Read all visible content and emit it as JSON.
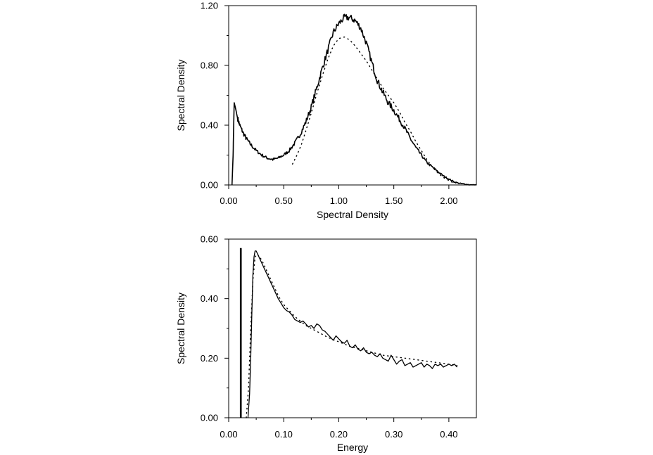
{
  "chart_data": [
    {
      "type": "line",
      "title": "",
      "xlabel": "Spectral Density",
      "ylabel": "Spectral Density",
      "xlim": [
        0,
        2.25
      ],
      "ylim": [
        0,
        1.2
      ],
      "x_ticks": [
        "0.00",
        "0.50",
        "1.00",
        "1.50",
        "2.00"
      ],
      "y_ticks": [
        "0.00",
        "0.40",
        "0.80",
        "1.20"
      ],
      "grid": false,
      "series": [
        {
          "style": "solid-noisy",
          "x": [
            0.03,
            0.04,
            0.05,
            0.06,
            0.08,
            0.1,
            0.13,
            0.16,
            0.2,
            0.25,
            0.3,
            0.35,
            0.4,
            0.45,
            0.5,
            0.55,
            0.6,
            0.65,
            0.7,
            0.75,
            0.8,
            0.85,
            0.9,
            0.95,
            1.0,
            1.05,
            1.1,
            1.15,
            1.2,
            1.25,
            1.3,
            1.35,
            1.4,
            1.45,
            1.5,
            1.55,
            1.6,
            1.65,
            1.7,
            1.75,
            1.8,
            1.85,
            1.9,
            1.95,
            2.0,
            2.05,
            2.1,
            2.15,
            2.2,
            2.25
          ],
          "y": [
            0.0,
            0.2,
            0.55,
            0.52,
            0.45,
            0.4,
            0.35,
            0.31,
            0.27,
            0.23,
            0.2,
            0.18,
            0.17,
            0.18,
            0.2,
            0.23,
            0.28,
            0.34,
            0.42,
            0.52,
            0.65,
            0.78,
            0.9,
            1.02,
            1.08,
            1.12,
            1.12,
            1.1,
            1.05,
            0.95,
            0.82,
            0.7,
            0.62,
            0.55,
            0.5,
            0.44,
            0.38,
            0.31,
            0.25,
            0.2,
            0.15,
            0.12,
            0.09,
            0.06,
            0.04,
            0.02,
            0.01,
            0.005,
            0.0,
            0.0
          ]
        },
        {
          "style": "dotted",
          "x": [
            0.58,
            0.62,
            0.66,
            0.7,
            0.75,
            0.8,
            0.85,
            0.9,
            0.95,
            1.0,
            1.05,
            1.1,
            1.15,
            1.2,
            1.25,
            1.3,
            1.35,
            1.4,
            1.45,
            1.5,
            1.55,
            1.6,
            1.65,
            1.7,
            1.75,
            1.8,
            1.85,
            1.9,
            1.95,
            2.0,
            2.05
          ],
          "y": [
            0.14,
            0.2,
            0.27,
            0.36,
            0.48,
            0.61,
            0.73,
            0.84,
            0.93,
            0.98,
            0.99,
            0.97,
            0.93,
            0.88,
            0.83,
            0.77,
            0.71,
            0.65,
            0.6,
            0.55,
            0.49,
            0.42,
            0.36,
            0.29,
            0.23,
            0.17,
            0.12,
            0.08,
            0.05,
            0.03,
            0.01
          ]
        }
      ]
    },
    {
      "type": "line",
      "title": "",
      "xlabel": "Energy",
      "ylabel": "Spectral Density",
      "xlim": [
        0,
        0.45
      ],
      "ylim": [
        0,
        0.6
      ],
      "x_ticks": [
        "0.00",
        "0.10",
        "0.20",
        "0.30",
        "0.40"
      ],
      "y_ticks": [
        "0.00",
        "0.20",
        "0.40",
        "0.60"
      ],
      "grid": false,
      "delta_line": {
        "x": 0.022,
        "y_top": 0.57
      },
      "series": [
        {
          "style": "solid",
          "x": [
            0.035,
            0.038,
            0.04,
            0.042,
            0.044,
            0.046,
            0.048,
            0.05,
            0.055,
            0.06,
            0.065,
            0.07,
            0.075,
            0.08,
            0.085,
            0.09,
            0.095,
            0.1,
            0.105,
            0.11,
            0.115,
            0.12,
            0.125,
            0.13,
            0.135,
            0.14,
            0.145,
            0.15,
            0.155,
            0.16,
            0.165,
            0.17,
            0.175,
            0.18,
            0.185,
            0.19,
            0.195,
            0.2,
            0.205,
            0.21,
            0.215,
            0.22,
            0.225,
            0.23,
            0.235,
            0.24,
            0.245,
            0.25,
            0.255,
            0.26,
            0.265,
            0.27,
            0.275,
            0.28,
            0.285,
            0.29,
            0.295,
            0.3,
            0.305,
            0.31,
            0.315,
            0.32,
            0.325,
            0.33,
            0.335,
            0.34,
            0.345,
            0.35,
            0.355,
            0.36,
            0.365,
            0.37,
            0.375,
            0.38,
            0.385,
            0.39,
            0.395,
            0.4,
            0.405,
            0.41,
            0.415
          ],
          "y": [
            0.0,
            0.08,
            0.2,
            0.35,
            0.48,
            0.54,
            0.56,
            0.56,
            0.54,
            0.52,
            0.5,
            0.48,
            0.46,
            0.44,
            0.42,
            0.4,
            0.385,
            0.37,
            0.36,
            0.355,
            0.345,
            0.33,
            0.325,
            0.32,
            0.325,
            0.315,
            0.305,
            0.31,
            0.3,
            0.315,
            0.31,
            0.295,
            0.29,
            0.28,
            0.27,
            0.26,
            0.275,
            0.265,
            0.255,
            0.25,
            0.26,
            0.24,
            0.235,
            0.245,
            0.23,
            0.225,
            0.235,
            0.22,
            0.215,
            0.22,
            0.21,
            0.205,
            0.215,
            0.2,
            0.195,
            0.19,
            0.21,
            0.195,
            0.18,
            0.19,
            0.195,
            0.175,
            0.18,
            0.185,
            0.17,
            0.175,
            0.18,
            0.185,
            0.17,
            0.18,
            0.175,
            0.165,
            0.18,
            0.175,
            0.18,
            0.17,
            0.175,
            0.18,
            0.175,
            0.18,
            0.17
          ]
        },
        {
          "style": "dotted",
          "x": [
            0.032,
            0.036,
            0.04,
            0.044,
            0.048,
            0.052,
            0.06,
            0.07,
            0.08,
            0.09,
            0.1,
            0.12,
            0.14,
            0.16,
            0.18,
            0.2,
            0.22,
            0.24,
            0.26,
            0.28,
            0.3,
            0.32,
            0.34,
            0.36,
            0.38,
            0.4,
            0.415
          ],
          "y": [
            0.0,
            0.1,
            0.3,
            0.46,
            0.54,
            0.55,
            0.53,
            0.49,
            0.45,
            0.41,
            0.38,
            0.34,
            0.31,
            0.29,
            0.27,
            0.255,
            0.24,
            0.23,
            0.22,
            0.21,
            0.205,
            0.2,
            0.195,
            0.19,
            0.185,
            0.18,
            0.175
          ]
        }
      ]
    }
  ]
}
